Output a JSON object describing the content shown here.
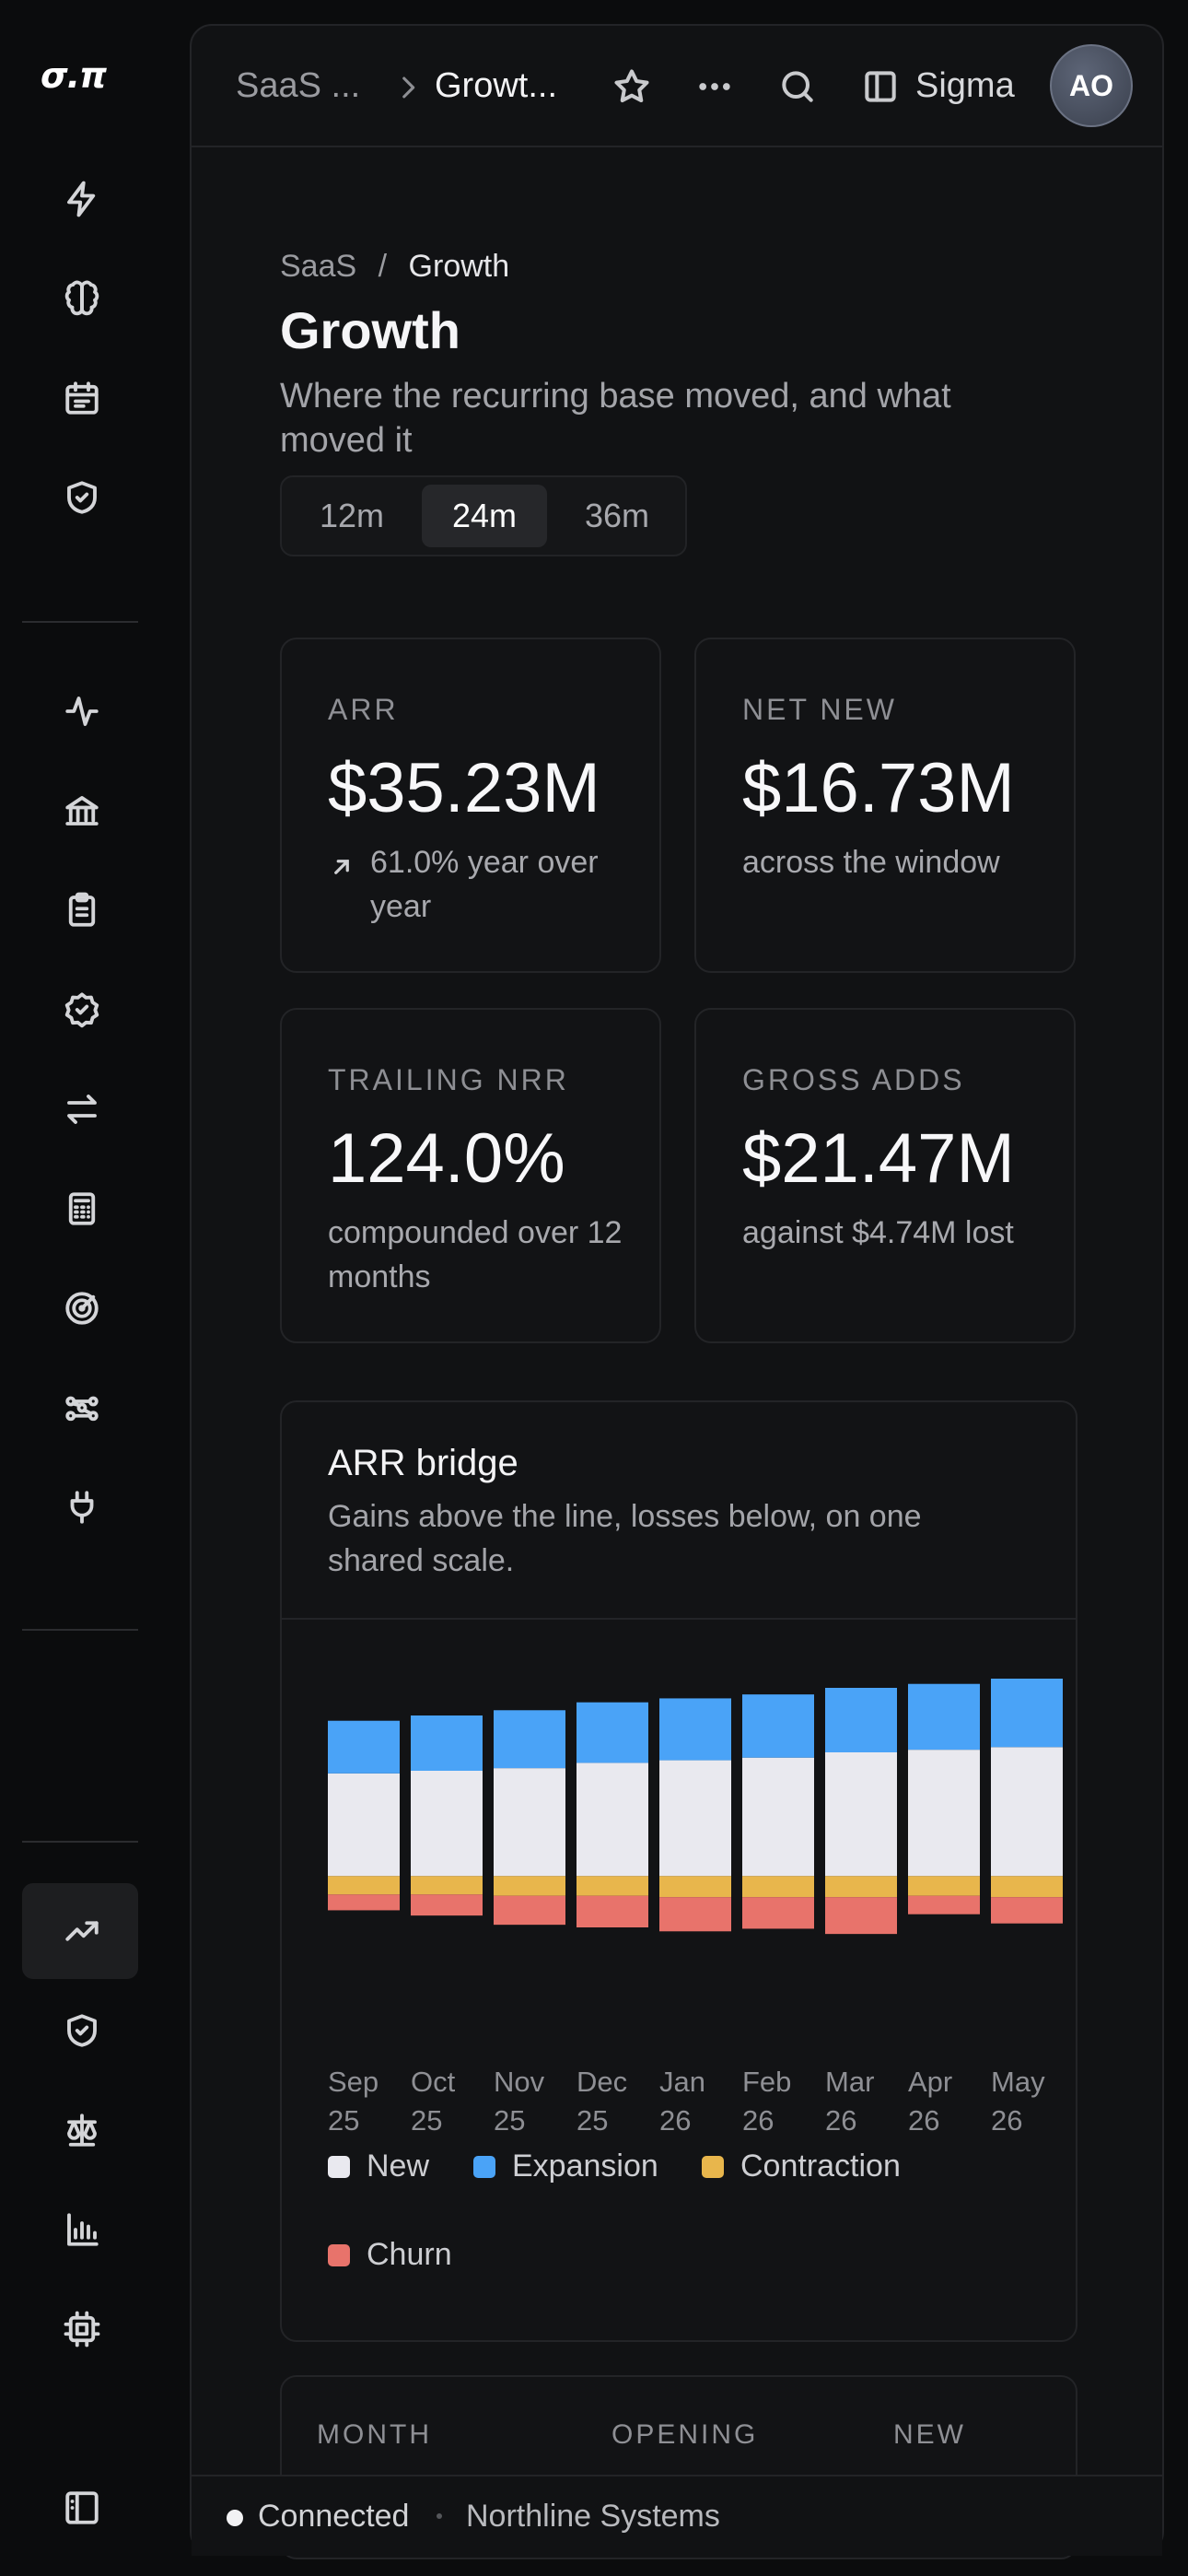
{
  "app": {
    "logo_text": "σ.π"
  },
  "rail": {
    "icons": [
      "bolt-icon",
      "brain-icon",
      "calendar-icon",
      "shield-check-icon",
      "activity-icon",
      "bank-icon",
      "clipboard-icon",
      "badge-check-icon",
      "arrows-swap-icon",
      "calculator-icon",
      "target-icon",
      "workflow-icon",
      "plug-icon",
      "trending-up-icon",
      "shield-icon",
      "scales-icon",
      "bar-chart-icon",
      "chip-icon",
      "sidebar-toggle-icon"
    ],
    "active": "trending-up-icon"
  },
  "topbar": {
    "crumb_parent": "SaaS ...",
    "crumb_current": "Growt...",
    "workspace": "Sigma",
    "avatar_initials": "AO"
  },
  "page": {
    "breadcrumb_parent": "SaaS",
    "breadcrumb_sep": "/",
    "breadcrumb_current": "Growth",
    "title": "Growth",
    "subtitle": "Where the recurring base moved, and what moved it"
  },
  "range": {
    "options": [
      "12m",
      "24m",
      "36m"
    ],
    "selected": "24m"
  },
  "kpis": {
    "arr": {
      "label": "ARR",
      "value": "$35.23M",
      "note": "61.0% year over year"
    },
    "net_new": {
      "label": "NET NEW",
      "value": "$16.73M",
      "note": "across the window"
    },
    "nrr": {
      "label": "TRAILING NRR",
      "value": "124.0%",
      "note": "compounded over 12 months"
    },
    "gross_adds": {
      "label": "GROSS ADDS",
      "value": "$21.47M",
      "note": "against $4.74M lost"
    }
  },
  "bridge": {
    "title": "ARR bridge",
    "subtitle": "Gains above the line, losses below, on one shared scale."
  },
  "chart_data": {
    "type": "bar",
    "title": "ARR bridge",
    "categories": [
      "Sep 25",
      "Oct 25",
      "Nov 25",
      "Dec 25",
      "Jan 26",
      "Feb 26",
      "Mar 26",
      "Apr 26",
      "May 26"
    ],
    "category_line1": [
      "Sep",
      "Oct",
      "Nov",
      "Dec",
      "Jan",
      "Feb",
      "Mar",
      "Apr",
      "May"
    ],
    "category_line2": [
      "25",
      "25",
      "25",
      "25",
      "26",
      "26",
      "26",
      "26",
      "26"
    ],
    "series": [
      {
        "name": "New",
        "color": "#e9e9ef",
        "values": [
          0.78,
          0.8,
          0.82,
          0.86,
          0.88,
          0.9,
          0.94,
          0.96,
          0.98
        ]
      },
      {
        "name": "Expansion",
        "color": "#4aa3f7",
        "values": [
          0.4,
          0.42,
          0.44,
          0.46,
          0.47,
          0.48,
          0.49,
          0.5,
          0.52
        ]
      },
      {
        "name": "Contraction",
        "color": "#e8b64c",
        "values": [
          -0.14,
          -0.14,
          -0.15,
          -0.15,
          -0.16,
          -0.16,
          -0.16,
          -0.15,
          -0.16
        ]
      },
      {
        "name": "Churn",
        "color": "#e8736b",
        "values": [
          -0.12,
          -0.16,
          -0.22,
          -0.24,
          -0.26,
          -0.24,
          -0.28,
          -0.14,
          -0.2
        ]
      }
    ],
    "ylim": [
      -0.6,
      1.5
    ],
    "legend_position": "bottom",
    "grid": false
  },
  "table": {
    "columns": [
      "MONTH",
      "OPENING",
      "NEW"
    ]
  },
  "status": {
    "connection": "Connected",
    "org": "Northline Systems"
  }
}
